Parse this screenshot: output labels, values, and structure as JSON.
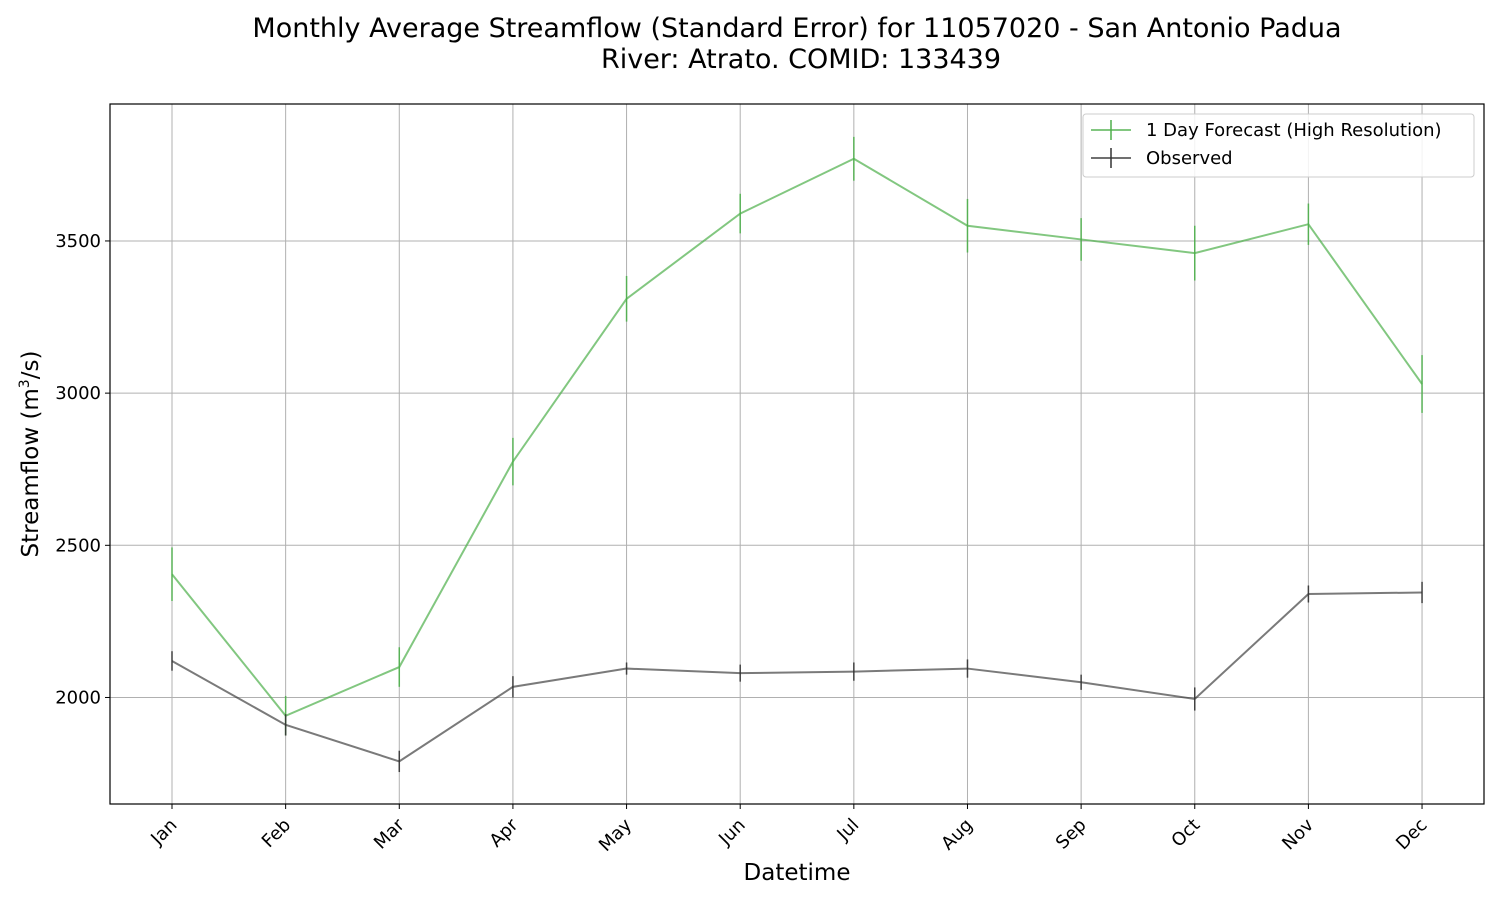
{
  "chart_data": {
    "type": "line",
    "title_line1": "Monthly Average Streamflow (Standard Error) for 11057020 - San Antonio Padua",
    "title_line2": "River: Atrato. COMID: 133439",
    "xlabel": "Datetime",
    "ylabel_main": "Streamflow (m",
    "ylabel_sup": "3",
    "ylabel_end": "/s)",
    "categories": [
      "Jan",
      "Feb",
      "Mar",
      "Apr",
      "May",
      "Jun",
      "Jul",
      "Aug",
      "Sep",
      "Oct",
      "Nov",
      "Dec"
    ],
    "yticks": [
      2000,
      2500,
      3000,
      3500
    ],
    "ylim": [
      1650,
      3950
    ],
    "grid": true,
    "legend_position": "top-right",
    "series": [
      {
        "name": "1 Day Forecast (High Resolution)",
        "color": "#4daf4a",
        "values": [
          2405,
          1940,
          2100,
          2775,
          3310,
          3590,
          3770,
          3550,
          3505,
          3460,
          3555,
          3030
        ],
        "errors": [
          88,
          65,
          65,
          78,
          75,
          65,
          72,
          88,
          70,
          90,
          68,
          95
        ]
      },
      {
        "name": "Observed",
        "color": "#333333",
        "values": [
          2120,
          1910,
          1790,
          2035,
          2095,
          2080,
          2085,
          2095,
          2050,
          1995,
          2340,
          2345
        ],
        "errors": [
          32,
          35,
          35,
          35,
          20,
          28,
          30,
          30,
          25,
          38,
          28,
          35
        ]
      }
    ]
  }
}
